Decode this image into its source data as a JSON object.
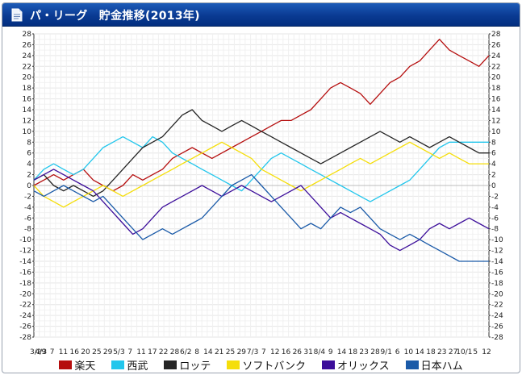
{
  "header": {
    "title": "パ・リーグ　貯金推移(2013年)",
    "icon": "document-icon"
  },
  "chart_data": {
    "type": "line",
    "title": "パ・リーグ　貯金推移(2013年)",
    "ylim": [
      -28,
      28
    ],
    "ystep": 2,
    "yticks": [
      "28",
      "26",
      "24",
      "22",
      "20",
      "18",
      "16",
      "14",
      "12",
      "10",
      "8",
      "6",
      "4",
      "2",
      "0",
      "-2",
      "-4",
      "-6",
      "-8",
      "-10",
      "-12",
      "-14",
      "-16",
      "-18",
      "-20",
      "-22",
      "-24",
      "-26",
      "-28"
    ],
    "xticks": [
      "3/29",
      "4/3",
      "7",
      "11",
      "16",
      "20",
      "25",
      "29",
      "5/3",
      "7",
      "11",
      "17",
      "22",
      "28",
      "6/2",
      "8",
      "14",
      "21",
      "25",
      "29",
      "7/3",
      "7",
      "12",
      "16",
      "26",
      "31",
      "8/4",
      "9",
      "14",
      "18",
      "23",
      "28",
      "9/1",
      "6",
      "10",
      "14",
      "18",
      "23",
      "27",
      "10/1",
      "5",
      "12"
    ],
    "grid": true,
    "legend_position": "bottom",
    "series": [
      {
        "name": "楽天",
        "color": "#b50e0e",
        "values": [
          0,
          1,
          2,
          1,
          2,
          3,
          1,
          0,
          -1,
          0,
          2,
          1,
          2,
          3,
          5,
          6,
          7,
          6,
          5,
          6,
          7,
          8,
          9,
          10,
          11,
          12,
          12,
          13,
          14,
          16,
          18,
          19,
          18,
          17,
          15,
          17,
          19,
          20,
          22,
          23,
          25,
          27,
          25,
          24,
          23,
          22,
          24
        ]
      },
      {
        "name": "西武",
        "color": "#22c6ec",
        "values": [
          1,
          3,
          4,
          3,
          2,
          3,
          5,
          7,
          8,
          9,
          8,
          7,
          9,
          8,
          6,
          5,
          4,
          3,
          2,
          1,
          0,
          -1,
          1,
          3,
          5,
          6,
          5,
          4,
          3,
          2,
          1,
          0,
          -1,
          -2,
          -3,
          -2,
          -1,
          0,
          1,
          3,
          5,
          7,
          8,
          8,
          8,
          8,
          8
        ]
      },
      {
        "name": "ロッテ",
        "color": "#252525",
        "values": [
          1,
          2,
          0,
          -1,
          0,
          -1,
          -2,
          -1,
          1,
          3,
          5,
          7,
          8,
          9,
          11,
          13,
          14,
          12,
          11,
          10,
          11,
          12,
          11,
          10,
          9,
          8,
          7,
          6,
          5,
          4,
          5,
          6,
          7,
          8,
          9,
          10,
          9,
          8,
          9,
          8,
          7,
          8,
          9,
          8,
          7,
          6,
          6
        ]
      },
      {
        "name": "ソフトバンク",
        "color": "#f5de0a",
        "values": [
          0,
          -2,
          -3,
          -4,
          -3,
          -2,
          -1,
          0,
          -1,
          -2,
          -1,
          0,
          1,
          2,
          3,
          4,
          5,
          6,
          7,
          8,
          7,
          6,
          5,
          3,
          2,
          1,
          0,
          -1,
          0,
          1,
          2,
          3,
          4,
          5,
          4,
          5,
          6,
          7,
          8,
          7,
          6,
          5,
          6,
          5,
          4,
          4,
          4
        ]
      },
      {
        "name": "オリックス",
        "color": "#3c0e9a",
        "values": [
          1,
          2,
          3,
          2,
          1,
          0,
          -1,
          -3,
          -5,
          -7,
          -9,
          -8,
          -6,
          -4,
          -3,
          -2,
          -1,
          0,
          -1,
          -2,
          -1,
          0,
          -1,
          -2,
          -3,
          -2,
          -1,
          0,
          -2,
          -4,
          -6,
          -5,
          -6,
          -7,
          -8,
          -9,
          -11,
          -12,
          -11,
          -10,
          -8,
          -7,
          -8,
          -7,
          -6,
          -7,
          -8
        ]
      },
      {
        "name": "日本ハム",
        "color": "#1a5aa8",
        "values": [
          -1,
          -2,
          -1,
          0,
          -1,
          -2,
          -3,
          -2,
          -4,
          -6,
          -8,
          -10,
          -9,
          -8,
          -9,
          -8,
          -7,
          -6,
          -4,
          -2,
          0,
          1,
          2,
          0,
          -2,
          -4,
          -6,
          -8,
          -7,
          -8,
          -6,
          -4,
          -5,
          -4,
          -6,
          -8,
          -9,
          -10,
          -9,
          -10,
          -11,
          -12,
          -13,
          -14,
          -14,
          -14,
          -14
        ]
      }
    ]
  }
}
